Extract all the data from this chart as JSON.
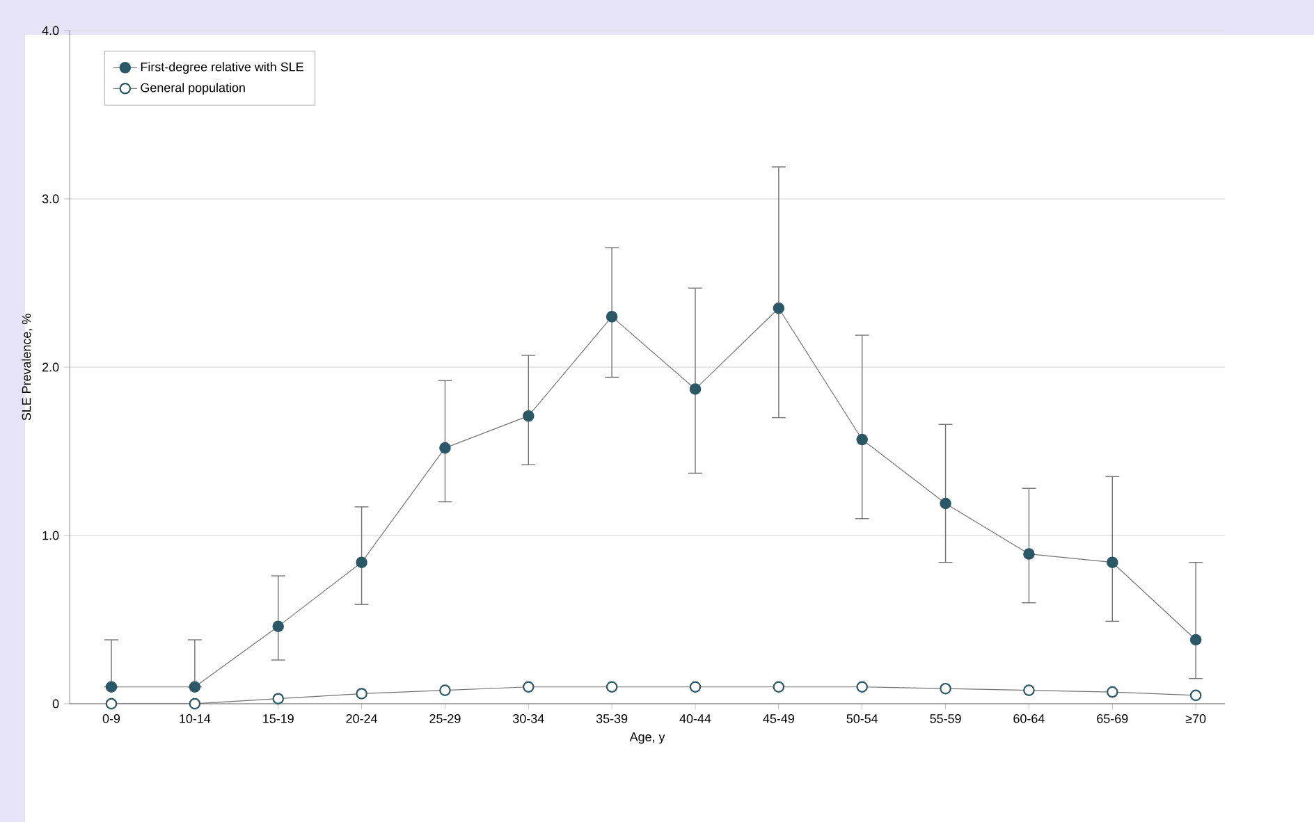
{
  "chart_data": {
    "type": "line",
    "xlabel": "Age, y",
    "ylabel": "SLE Prevalence, %",
    "categories": [
      "0-9",
      "10-14",
      "15-19",
      "20-24",
      "25-29",
      "30-34",
      "35-39",
      "40-44",
      "45-49",
      "50-54",
      "55-59",
      "60-64",
      "65-69",
      "≥70"
    ],
    "series": [
      {
        "name": "First-degree relative with SLE",
        "color": "#2a5866",
        "values": [
          0.1,
          0.1,
          0.46,
          0.84,
          1.52,
          1.71,
          2.3,
          1.87,
          2.35,
          1.57,
          1.19,
          0.89,
          0.84,
          0.38
        ],
        "errors": [
          [
            0.1,
            0.38
          ],
          [
            0.1,
            0.38
          ],
          [
            0.26,
            0.76
          ],
          [
            0.59,
            1.17
          ],
          [
            1.2,
            1.92
          ],
          [
            1.42,
            2.07
          ],
          [
            1.94,
            2.71
          ],
          [
            1.37,
            2.47
          ],
          [
            1.7,
            3.19
          ],
          [
            1.1,
            2.19
          ],
          [
            0.84,
            1.66
          ],
          [
            0.6,
            1.28
          ],
          [
            0.49,
            1.35
          ],
          [
            0.15,
            0.84
          ]
        ]
      },
      {
        "name": "General population",
        "color": "#2a5866",
        "values": [
          0,
          0,
          0.03,
          0.06,
          0.08,
          0.1,
          0.1,
          0.1,
          0.1,
          0.1,
          0.09,
          0.08,
          0.07,
          0.05
        ]
      }
    ],
    "ylim": [
      0,
      4
    ],
    "yticks": [
      0,
      {
        "value": 1,
        "label": "1.0"
      },
      {
        "value": 2,
        "label": "2.0"
      },
      {
        "value": 3,
        "label": "3.0"
      },
      {
        "value": 4,
        "label": "4.0"
      }
    ],
    "grid": "y",
    "legend": "top left",
    "marker": "circle",
    "line_style": "solid"
  }
}
